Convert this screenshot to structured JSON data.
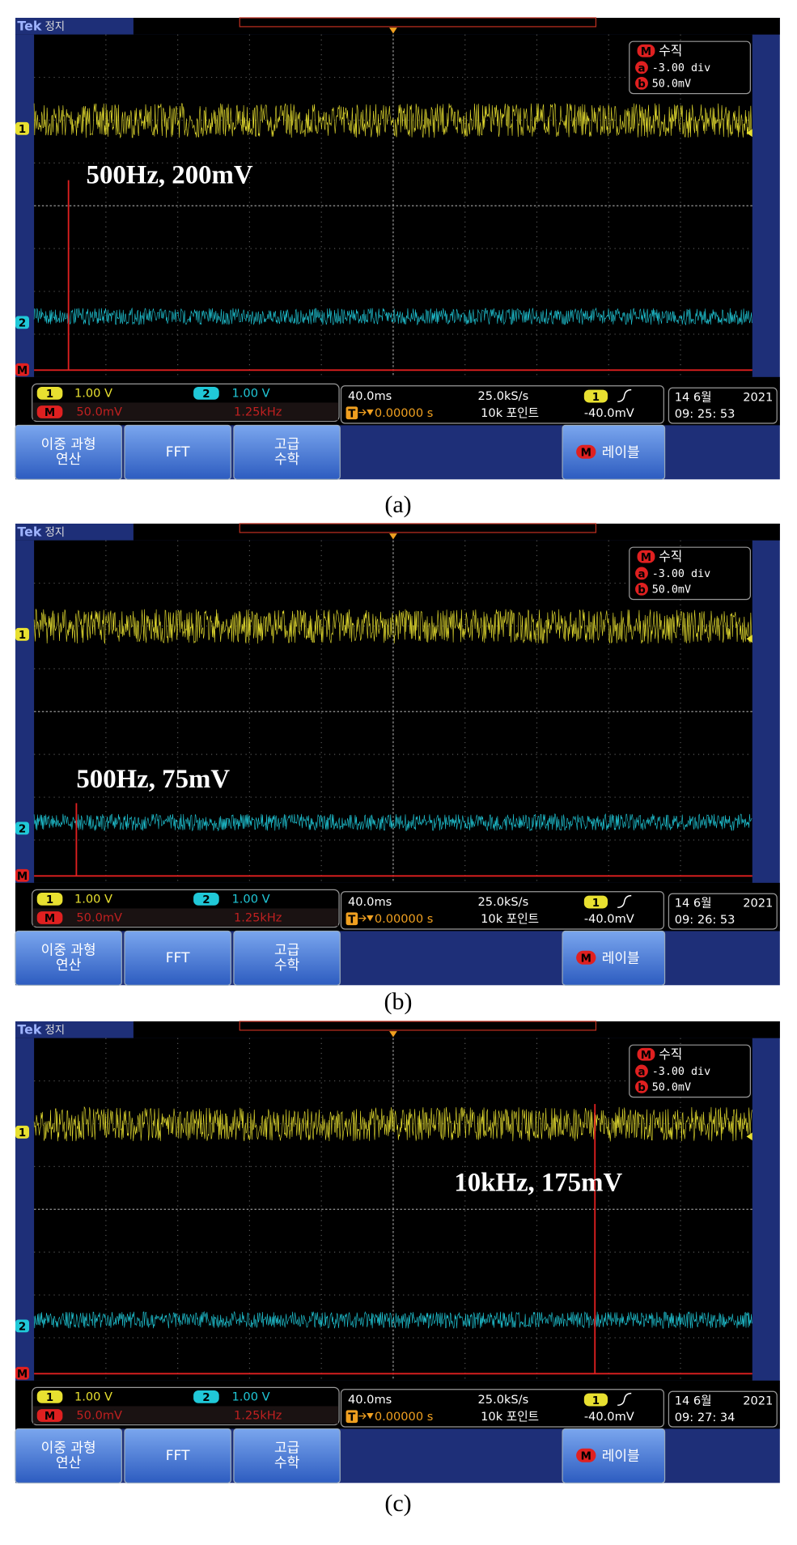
{
  "panels": [
    {
      "caption": "(a)",
      "top": {
        "brand": "Tek",
        "state": "정지"
      },
      "markers": [
        "1",
        "2",
        "M"
      ],
      "info": {
        "badge": "M",
        "title": "수직",
        "a_label": "a",
        "a_value": "-3.00 div",
        "b_label": "b",
        "b_value": "50.0mV"
      },
      "annotation": "500Hz, 200mV",
      "status": {
        "ch1": "1",
        "ch1_scale": "1.00 V",
        "ch2": "2",
        "ch2_scale": "1.00 V",
        "math": "M",
        "math_scale": "50.0mV",
        "math_freq": "1.25kHz",
        "timebase": "40.0ms",
        "sample_rate": "25.0kS/s",
        "trigger_source": "1",
        "trigger_badge": "T",
        "trigger_position": "0.00000 s",
        "record_length": "10k 포인트",
        "trigger_level": "-40.0mV",
        "date": "14 6월",
        "year": "2021",
        "time": "09: 25: 53"
      },
      "buttons": [
        [
          "이중 과형",
          "연산"
        ],
        [
          "FFT"
        ],
        [
          "고급",
          "수학"
        ]
      ],
      "label_button": {
        "badge": "M",
        "text": "레이블"
      }
    },
    {
      "caption": "(b)",
      "top": {
        "brand": "Tek",
        "state": "정지"
      },
      "markers": [
        "1",
        "2",
        "M"
      ],
      "info": {
        "badge": "M",
        "title": "수직",
        "a_label": "a",
        "a_value": "-3.00 div",
        "b_label": "b",
        "b_value": "50.0mV"
      },
      "annotation": "500Hz, 75mV",
      "status": {
        "ch1": "1",
        "ch1_scale": "1.00 V",
        "ch2": "2",
        "ch2_scale": "1.00 V",
        "math": "M",
        "math_scale": "50.0mV",
        "math_freq": "1.25kHz",
        "timebase": "40.0ms",
        "sample_rate": "25.0kS/s",
        "trigger_source": "1",
        "trigger_badge": "T",
        "trigger_position": "0.00000 s",
        "record_length": "10k 포인트",
        "trigger_level": "-40.0mV",
        "date": "14 6월",
        "year": "2021",
        "time": "09: 26: 53"
      },
      "buttons": [
        [
          "이중 과형",
          "연산"
        ],
        [
          "FFT"
        ],
        [
          "고급",
          "수학"
        ]
      ],
      "label_button": {
        "badge": "M",
        "text": "레이블"
      }
    },
    {
      "caption": "(c)",
      "top": {
        "brand": "Tek",
        "state": "정지"
      },
      "markers": [
        "1",
        "2",
        "M"
      ],
      "info": {
        "badge": "M",
        "title": "수직",
        "a_label": "a",
        "a_value": "-3.00 div",
        "b_label": "b",
        "b_value": "50.0mV"
      },
      "annotation": "10kHz, 175mV",
      "status": {
        "ch1": "1",
        "ch1_scale": "1.00 V",
        "ch2": "2",
        "ch2_scale": "1.00 V",
        "math": "M",
        "math_scale": "50.0mV",
        "math_freq": "1.25kHz",
        "timebase": "40.0ms",
        "sample_rate": "25.0kS/s",
        "trigger_source": "1",
        "trigger_badge": "T",
        "trigger_position": "0.00000 s",
        "record_length": "10k 포인트",
        "trigger_level": "-40.0mV",
        "date": "14 6월",
        "year": "2021",
        "time": "09: 27: 34"
      },
      "buttons": [
        [
          "이중 과형",
          "연산"
        ],
        [
          "FFT"
        ],
        [
          "고급",
          "수학"
        ]
      ],
      "label_button": {
        "badge": "M",
        "text": "레이블"
      }
    }
  ]
}
